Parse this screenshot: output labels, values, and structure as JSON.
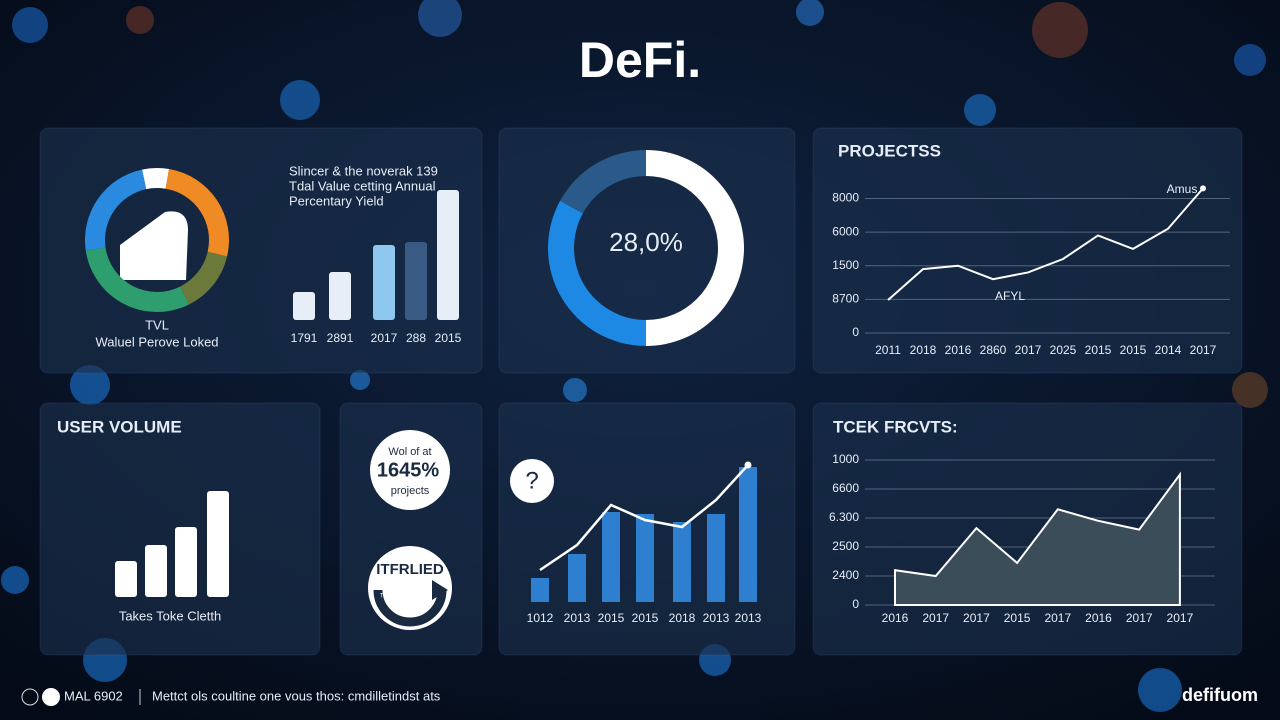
{
  "title": "DeFi.",
  "chart_data": [
    {
      "type": "pie",
      "categories": [
        null,
        null,
        null,
        null,
        null
      ],
      "values": [
        6,
        26,
        14,
        30,
        24
      ],
      "colors": [
        "#ffffff",
        "#f08a24",
        "#6b7a3a",
        "#2e9e6e",
        "#2a8ae0"
      ],
      "label": "TVL",
      "sublabel": "Waluel Perove Loked"
    },
    {
      "type": "bar",
      "title_lines": [
        "Slincer & the noverak 139",
        "Tdal Value cetting Annual",
        "Percentary Yield"
      ],
      "categories": [
        "1791",
        "2891",
        "2017",
        "288",
        "2015"
      ],
      "values": [
        28,
        48,
        75,
        78,
        130
      ],
      "colors": [
        "#e8eef8",
        "#e8eef8",
        "#8ec8ee",
        "#3a5a86",
        "#e8eef8"
      ]
    },
    {
      "type": "pie",
      "center_label": "28,0%",
      "categories": [
        null,
        null,
        null
      ],
      "values": [
        50,
        33,
        17
      ],
      "colors": [
        "#ffffff",
        "#1e88e5",
        "#2a5a8a"
      ]
    },
    {
      "type": "line",
      "title": "PROJECTSS",
      "categories": [
        "2011",
        "2018",
        "2016",
        "2860",
        "2017",
        "2025",
        "2015",
        "2015",
        "2014",
        "2017"
      ],
      "values": [
        0.98,
        1.9,
        2.0,
        1.6,
        1.8,
        2.2,
        2.9,
        2.5,
        3.1,
        4.3
      ],
      "ylim": [
        0,
        4.4
      ],
      "yticks": [
        0,
        {
          "value": 1,
          "label": "8700"
        },
        {
          "value": 2,
          "label": "1500"
        },
        {
          "value": 3,
          "label": "6000"
        },
        {
          "value": 4,
          "label": "8000"
        }
      ],
      "grid": true,
      "color": "#ffffff",
      "annotations": [
        "Amus",
        "AFYL"
      ]
    },
    {
      "type": "bar",
      "title": "USER VOLUME",
      "categories": [
        null,
        null,
        null,
        null
      ],
      "values": [
        36,
        52,
        70,
        106
      ],
      "colors": [
        "#ffffff",
        "#ffffff",
        "#ffffff",
        "#ffffff"
      ],
      "caption": "Takes Toke Cletth"
    },
    {
      "type": "combo",
      "categories": [
        "1012",
        "2013",
        "2015",
        "2015",
        "2018",
        "2013",
        "2013"
      ],
      "values": [
        24,
        48,
        90,
        88,
        80,
        88,
        135
      ],
      "color": "#2f7fd0",
      "line_values": [
        32,
        57,
        97,
        82,
        75,
        102,
        137
      ],
      "line_color": "#ffffff"
    },
    {
      "type": "area",
      "title": "TCEK FRCVTS:",
      "categories": [
        "2016",
        "2017",
        "2017",
        "2015",
        "2017",
        "2016",
        "2017",
        "2017"
      ],
      "values": [
        1.2,
        1.0,
        2.65,
        1.45,
        3.3,
        2.9,
        2.6,
        4.5
      ],
      "ylim": [
        0,
        5
      ],
      "yticks": [
        0,
        {
          "value": 1,
          "label": "2400"
        },
        {
          "value": 2,
          "label": "2500"
        },
        {
          "value": 3,
          "label": "6.300"
        },
        {
          "value": 4,
          "label": "6600"
        },
        {
          "value": 5,
          "label": "1000"
        }
      ],
      "grid": true,
      "color": "#ffffff",
      "fill": "#3c4d5a"
    }
  ],
  "badge": {
    "top": "Wol of at",
    "value": "1645%",
    "bottom": "projects"
  },
  "icon": {
    "arc_text": "ITFRLIED",
    "inner_text": "TERR"
  },
  "question_icon": "?",
  "footer": {
    "code": "MAL 6902",
    "text": "Mettct ols coultine one vous thos: cmdilletindst ats",
    "brand": "defifuom"
  }
}
